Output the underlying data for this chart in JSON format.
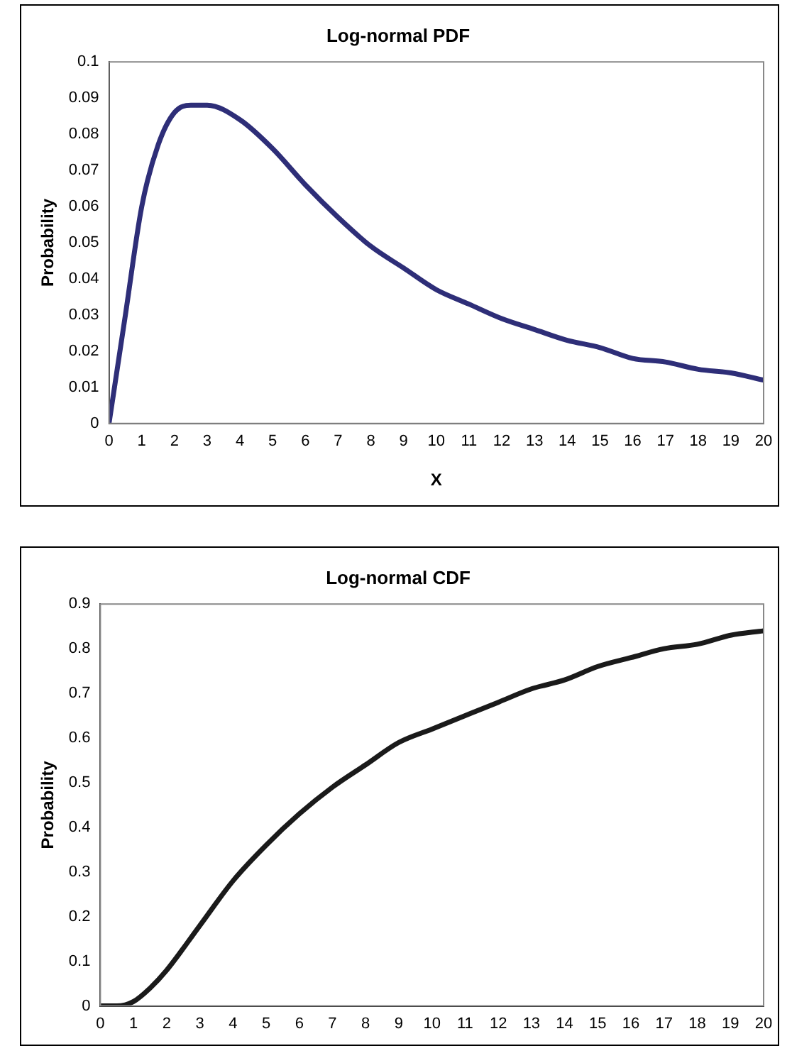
{
  "chart_data": [
    {
      "type": "line",
      "title": "Log-normal PDF",
      "xlabel": "X",
      "ylabel": "Probability",
      "x": [
        0,
        0.5,
        1,
        1.5,
        2,
        2.5,
        3,
        4,
        5,
        6,
        7,
        8,
        9,
        10,
        11,
        12,
        13,
        14,
        15,
        16,
        17,
        18,
        19,
        20
      ],
      "series": [
        {
          "color": "#2e2e78",
          "values": [
            0,
            0.03,
            0.06,
            0.077,
            0.086,
            0.088,
            0.088,
            0.084,
            0.076,
            0.066,
            0.057,
            0.049,
            0.043,
            0.037,
            0.033,
            0.029,
            0.026,
            0.023,
            0.021,
            0.018,
            0.017,
            0.015,
            0.014,
            0.012
          ]
        }
      ],
      "xlim": [
        0,
        20
      ],
      "xticks": [
        0,
        1,
        2,
        3,
        4,
        5,
        6,
        7,
        8,
        9,
        10,
        11,
        12,
        13,
        14,
        15,
        16,
        17,
        18,
        19,
        20
      ],
      "ylim": [
        0,
        0.1
      ],
      "yticks": [
        0,
        0.01,
        0.02,
        0.03,
        0.04,
        0.05,
        0.06,
        0.07,
        0.08,
        0.09,
        0.1
      ],
      "grid": false,
      "legend": false,
      "marker": "none",
      "line_style": "solid"
    },
    {
      "type": "line",
      "title": "Log-normal CDF",
      "ylabel": "Probability",
      "x": [
        0,
        0.5,
        1,
        1.5,
        2,
        3,
        4,
        5,
        6,
        7,
        8,
        9,
        10,
        11,
        12,
        13,
        14,
        15,
        16,
        17,
        18,
        19,
        20
      ],
      "series": [
        {
          "color": "#1a1a1a",
          "values": [
            0,
            0,
            0.01,
            0.04,
            0.08,
            0.18,
            0.28,
            0.36,
            0.43,
            0.49,
            0.54,
            0.59,
            0.62,
            0.65,
            0.68,
            0.71,
            0.73,
            0.76,
            0.78,
            0.8,
            0.81,
            0.83,
            0.84
          ]
        }
      ],
      "xlim": [
        0,
        20
      ],
      "xticks": [
        0,
        1,
        2,
        3,
        4,
        5,
        6,
        7,
        8,
        9,
        10,
        11,
        12,
        13,
        14,
        15,
        16,
        17,
        18,
        19,
        20
      ],
      "ylim": [
        0,
        0.9
      ],
      "yticks": [
        0,
        0.1,
        0.2,
        0.3,
        0.4,
        0.5,
        0.6,
        0.7,
        0.8,
        0.9
      ],
      "grid": false,
      "legend": false,
      "marker": "none",
      "line_style": "solid"
    }
  ]
}
